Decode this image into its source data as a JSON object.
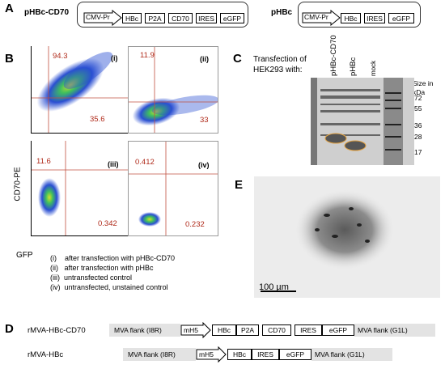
{
  "panel_a": {
    "letter": "A",
    "construct1": {
      "name": "pHBc-CD70",
      "elements": [
        "CMV-Pr",
        "HBc",
        "P2A",
        "CD70",
        "IRES",
        "eGFP"
      ]
    },
    "construct2": {
      "name": "pHBc",
      "elements": [
        "CMV-Pr",
        "HBc",
        "IRES",
        "eGFP"
      ]
    }
  },
  "panel_b": {
    "letter": "B",
    "ylabel": "CD70-PE",
    "xlabel": "GFP",
    "plots": [
      {
        "id": "(i)",
        "upper_left": "94.3",
        "lower_right": "35.6"
      },
      {
        "id": "(ii)",
        "upper_left": "11.9",
        "lower_right": "33"
      },
      {
        "id": "(iii)",
        "upper_left": "11.6",
        "lower_right": "0.342"
      },
      {
        "id": "(iv)",
        "upper_left": "0.412",
        "lower_right": "0.232"
      }
    ],
    "legend": [
      "(i)    after transfection with pHBc-CD70",
      "(ii)   after transfection with pHBc",
      "(iii)  untransfected control",
      "(iv)  untransfected, unstained control"
    ]
  },
  "panel_c": {
    "letter": "C",
    "caption_line1": "Transfection of",
    "caption_line2": "HEK293 with:",
    "lanes": [
      "pHBc-CD70",
      "pHBc",
      "mock"
    ],
    "size_label": "Size in",
    "size_unit": "kDa",
    "markers": [
      "72",
      "55",
      "36",
      "28",
      "17"
    ]
  },
  "panel_e": {
    "letter": "E",
    "scale_label": "100 µm"
  },
  "panel_d": {
    "letter": "D",
    "construct1": {
      "name": "rMVA-HBc-CD70",
      "flank_left": "MVA flank (I8R)",
      "promoter": "mH5",
      "elements": [
        "HBc",
        "P2A",
        "CD70",
        "IRES",
        "eGFP"
      ],
      "flank_right": "MVA flank (G1L)"
    },
    "construct2": {
      "name": "rMVA-HBc",
      "flank_left": "MVA flank (I8R)",
      "promoter": "mH5",
      "elements": [
        "HBc",
        "IRES",
        "eGFP"
      ],
      "flank_right": "MVA flank (G1L)"
    }
  }
}
